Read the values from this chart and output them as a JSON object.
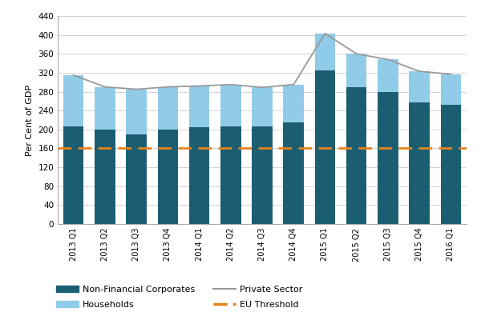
{
  "categories": [
    "2013 Q1",
    "2013 Q2",
    "2013 Q3",
    "2013 Q4",
    "2014 Q1",
    "2014 Q2",
    "2014 Q3",
    "2014 Q4",
    "2015 Q1",
    "2015 Q2",
    "2015 Q3",
    "2015 Q4",
    "2016 Q1"
  ],
  "non_financial": [
    207,
    200,
    190,
    200,
    204,
    207,
    207,
    215,
    325,
    290,
    280,
    258,
    252
  ],
  "households": [
    108,
    90,
    95,
    90,
    88,
    88,
    82,
    80,
    78,
    70,
    68,
    65,
    65
  ],
  "private_sector": [
    315,
    290,
    285,
    290,
    292,
    295,
    289,
    295,
    403,
    360,
    348,
    323,
    317
  ],
  "eu_threshold": 160,
  "bar_color_nfc": "#1b5e72",
  "bar_color_hh": "#90cce8",
  "line_color_ps": "#999999",
  "line_color_eu": "#e8821a",
  "ylabel": "Per Cent of GDP",
  "ylim": [
    0,
    440
  ],
  "yticks": [
    0,
    40,
    80,
    120,
    160,
    200,
    240,
    280,
    320,
    360,
    400,
    440
  ],
  "background_color": "#ffffff",
  "plot_bg": "#ffffff",
  "legend_nfc": "Non-Financial Corporates",
  "legend_hh": "Households",
  "legend_ps": "Private Sector",
  "legend_eu": "EU Threshold"
}
